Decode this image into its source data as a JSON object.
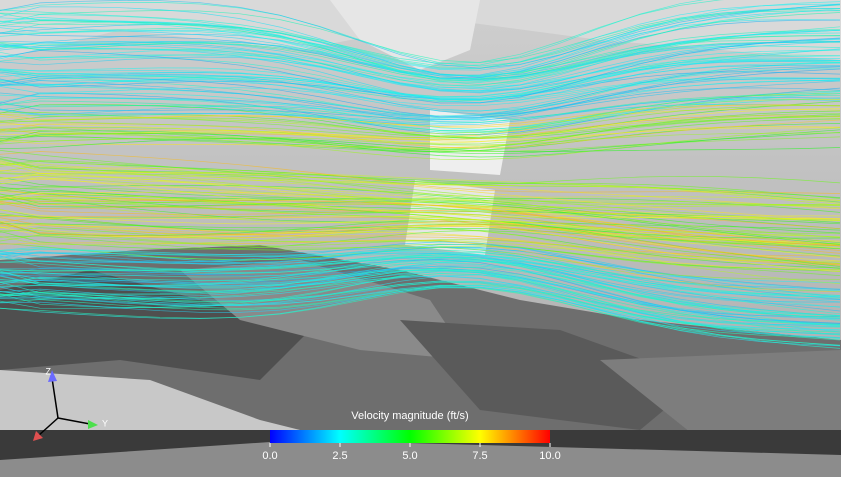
{
  "colorbar": {
    "title": "Velocity magnitude (ft/s)",
    "range": [
      0,
      10
    ],
    "ticks": [
      {
        "value": 0,
        "label": "0.0"
      },
      {
        "value": 2.5,
        "label": "2.5"
      },
      {
        "value": 5,
        "label": "5.0"
      },
      {
        "value": 7.5,
        "label": "7.5"
      },
      {
        "value": 10,
        "label": "10.0"
      }
    ],
    "colors": [
      "#0000ff",
      "#00ffff",
      "#00ff00",
      "#ffff00",
      "#ff0000"
    ]
  },
  "axes": {
    "z": "Z",
    "y": "Y"
  }
}
